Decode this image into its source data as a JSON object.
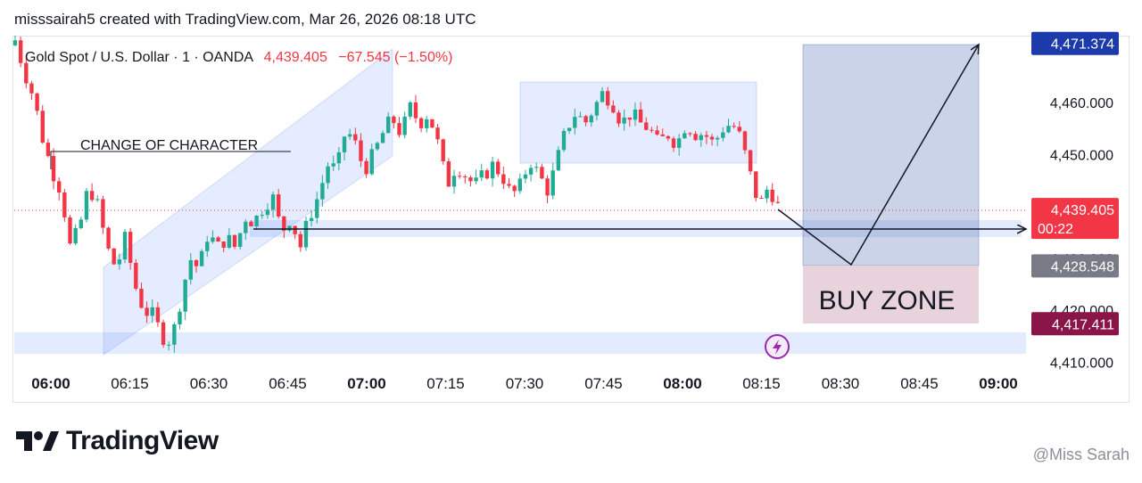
{
  "header": {
    "text": "misssairah5 created with TradingView.com, Mar 26, 2026 08:18 UTC"
  },
  "legend": {
    "symbol": "Gold Spot / U.S. Dollar · 1 · OANDA",
    "price": "4,439.405",
    "change": "−67.545 (−1.50%)"
  },
  "brand": {
    "name": "TradingView"
  },
  "watermark": {
    "text": "@Miss Sarah"
  },
  "colors": {
    "up": "#22ab94",
    "down": "#f23645",
    "zone_blue": "#2962ff",
    "buy_zone": "#e8d3dc",
    "target_label": "#1c3aa9",
    "stop_label": "#8a1548"
  },
  "chart_data": {
    "type": "candlestick",
    "title": "Gold Spot / U.S. Dollar · 1 · OANDA",
    "x_ticks": [
      {
        "label": "06:00",
        "bold": true
      },
      {
        "label": "06:15"
      },
      {
        "label": "06:30"
      },
      {
        "label": "06:45"
      },
      {
        "label": "07:00",
        "bold": true
      },
      {
        "label": "07:15"
      },
      {
        "label": "07:30"
      },
      {
        "label": "07:45"
      },
      {
        "label": "08:00",
        "bold": true
      },
      {
        "label": "08:15"
      },
      {
        "label": "08:30"
      },
      {
        "label": "08:45"
      },
      {
        "label": "09:00",
        "bold": true
      }
    ],
    "y_ticks": [
      "4,460.000",
      "4,450.000",
      "4,430.000",
      "4,420.000",
      "4,410.000"
    ],
    "y_range": [
      4407.5,
      4475
    ],
    "price_labels": [
      {
        "text": "4,471.374",
        "value": 4471.374,
        "style": "target"
      },
      {
        "text": "4,439.405",
        "sub": "00:22",
        "value": 4439.405,
        "style": "current"
      },
      {
        "text": "4,428.548",
        "value": 4428.548,
        "style": "mid"
      },
      {
        "text": "4,417.411",
        "value": 4417.411,
        "style": "stop"
      }
    ],
    "annotations": [
      {
        "text": "CHANGE OF CHARACTER"
      },
      {
        "text": "BUY ZONE"
      }
    ],
    "candles_note": "1-minute OHLC, 06:00–08:19 UTC, approximate"
  }
}
